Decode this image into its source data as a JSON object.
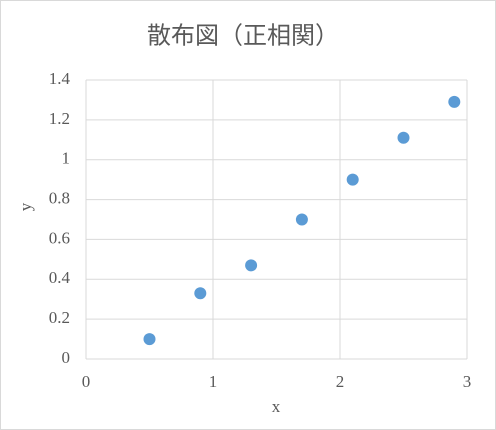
{
  "chart_data": {
    "type": "scatter",
    "title": "散布図（正相関）",
    "x_label": "x",
    "y_label": "y",
    "series": [
      {
        "color": "#5b9bd5",
        "x": [
          0.5,
          0.9,
          1.3,
          1.7,
          2.1,
          2.5,
          2.9
        ],
        "values": [
          0.1,
          0.33,
          0.47,
          0.7,
          0.9,
          1.11,
          1.29
        ]
      }
    ],
    "xlim": [
      0,
      3
    ],
    "xticks": [
      0,
      1,
      2,
      3
    ],
    "ylim": [
      0,
      1.4
    ],
    "yticks": [
      0,
      0.2,
      0.4,
      0.6,
      0.8,
      1,
      1.2,
      1.4
    ],
    "grid": true
  }
}
